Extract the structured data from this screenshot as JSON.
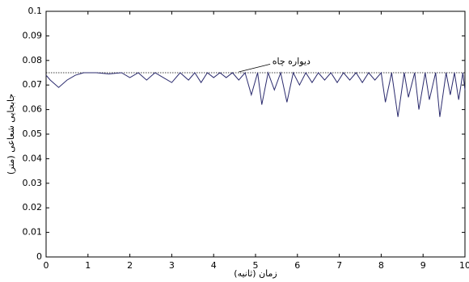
{
  "chart_data": {
    "type": "line",
    "x_label": "زمان (ثانیه)",
    "y_label": "جابجایی شعاعی (متر)",
    "annotation": "دیواره چاه",
    "reference_line": 0.075,
    "xlim": [
      0,
      10
    ],
    "ylim": [
      0,
      0.1
    ],
    "xticks": [
      0,
      1,
      2,
      3,
      4,
      5,
      6,
      7,
      8,
      9,
      10
    ],
    "yticks": [
      0,
      0.01,
      0.02,
      0.03,
      0.04,
      0.05,
      0.06,
      0.07,
      0.08,
      0.09,
      0.1
    ],
    "series": [
      {
        "color": "#2b2b6e",
        "x": [
          0,
          0.1,
          0.3,
          0.5,
          0.7,
          0.9,
          1.2,
          1.5,
          1.8,
          2.0,
          2.2,
          2.4,
          2.6,
          2.8,
          3.0,
          3.2,
          3.4,
          3.55,
          3.7,
          3.85,
          4.0,
          4.15,
          4.3,
          4.45,
          4.6,
          4.75,
          4.9,
          5.05,
          5.15,
          5.3,
          5.45,
          5.6,
          5.75,
          5.9,
          6.05,
          6.2,
          6.35,
          6.5,
          6.65,
          6.8,
          6.95,
          7.1,
          7.25,
          7.4,
          7.55,
          7.7,
          7.85,
          8.0,
          8.1,
          8.25,
          8.4,
          8.55,
          8.65,
          8.8,
          8.9,
          9.05,
          9.15,
          9.3,
          9.4,
          9.55,
          9.65,
          9.75,
          9.85,
          9.95,
          10
        ],
        "values": [
          0.074,
          0.072,
          0.069,
          0.072,
          0.074,
          0.075,
          0.075,
          0.0745,
          0.075,
          0.073,
          0.075,
          0.072,
          0.075,
          0.073,
          0.071,
          0.075,
          0.072,
          0.075,
          0.071,
          0.075,
          0.073,
          0.075,
          0.073,
          0.075,
          0.072,
          0.075,
          0.066,
          0.075,
          0.062,
          0.075,
          0.068,
          0.075,
          0.063,
          0.075,
          0.07,
          0.075,
          0.071,
          0.075,
          0.072,
          0.075,
          0.071,
          0.075,
          0.072,
          0.075,
          0.071,
          0.075,
          0.072,
          0.075,
          0.063,
          0.075,
          0.057,
          0.075,
          0.065,
          0.075,
          0.06,
          0.075,
          0.064,
          0.075,
          0.057,
          0.075,
          0.066,
          0.075,
          0.064,
          0.075,
          0.068
        ]
      }
    ]
  }
}
